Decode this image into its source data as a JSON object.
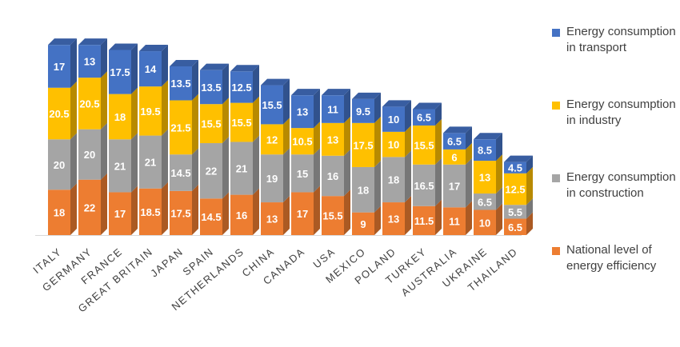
{
  "chart_data": {
    "type": "bar",
    "stacked": true,
    "categories": [
      "ITALY",
      "GERMANY",
      "FRANCE",
      "GREAT BRITAIN",
      "JAPAN",
      "SPAIN",
      "NETHERLANDS",
      "CHINA",
      "CANADA",
      "USA",
      "MEXICO",
      "POLAND",
      "TURKEY",
      "AUSTRALIA",
      "UKRAINE",
      "THAILAND"
    ],
    "series": [
      {
        "name": "National level of energy efficiency",
        "color": "#ED7D31",
        "values": [
          18,
          22,
          17,
          18.5,
          17.5,
          14.5,
          16,
          13,
          17,
          15.5,
          9,
          13,
          11.5,
          11,
          10,
          6.5
        ]
      },
      {
        "name": "Energy consumption in construction",
        "color": "#A5A5A5",
        "values": [
          20,
          20,
          21,
          21,
          14.5,
          22,
          21,
          19,
          15,
          16,
          18,
          18,
          16.5,
          17,
          6.5,
          5.5
        ]
      },
      {
        "name": "Energy consumption in industry",
        "color": "#FFC000",
        "values": [
          20.5,
          20.5,
          18,
          19.5,
          21.5,
          15.5,
          15.5,
          12,
          10.5,
          13,
          17.5,
          10,
          15.5,
          6,
          13,
          12.5
        ]
      },
      {
        "name": "Energy consumption in transport",
        "color": "#4472C4",
        "values": [
          17,
          13,
          17.5,
          14,
          13.5,
          13.5,
          12.5,
          15.5,
          13,
          11,
          9.5,
          10,
          6.5,
          6.5,
          8.5,
          4.5
        ]
      }
    ],
    "legend_order": [
      3,
      2,
      1,
      0
    ],
    "legend_position": "right",
    "grid": false,
    "ylim": [
      0,
      80
    ],
    "data_labels": true,
    "three_d": true
  }
}
